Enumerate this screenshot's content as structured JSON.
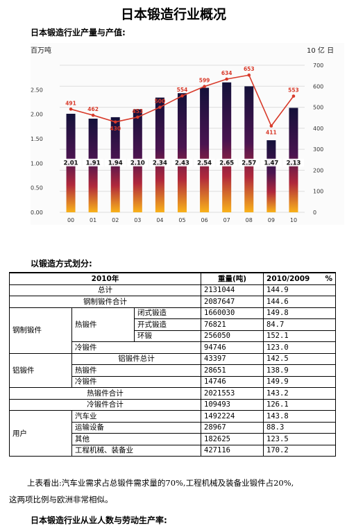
{
  "page": {
    "title": "日本锻造行业概况",
    "section1": "日本锻造行业产量与产值:",
    "section2": "以锻造方式划分:",
    "paragraph_line1": "上表看出:汽车业需求占总锻件需求量的70%,工程机械及装备业锻件占20%,",
    "paragraph_line2": "这两项比例与欧洲非常相似。",
    "section3": "日本锻造行业从业人数与劳动生产率:"
  },
  "chart_data": {
    "type": "bar",
    "left_axis_label": "百万吨",
    "right_axis_label": "10 亿 日",
    "categories": [
      "00",
      "01",
      "02",
      "03",
      "04",
      "05",
      "06",
      "07",
      "08",
      "09",
      "10"
    ],
    "bar_values": [
      2.01,
      1.91,
      1.94,
      2.1,
      2.34,
      2.43,
      2.54,
      2.65,
      2.57,
      1.47,
      2.13
    ],
    "bar_labels": [
      "2.01",
      "1.91",
      "1.94",
      "2.10",
      "2.34",
      "2.43",
      "2.54",
      "2.65",
      "2.57",
      "1.47",
      "2.13"
    ],
    "line_values": [
      491,
      462,
      430,
      453,
      500,
      554,
      599,
      634,
      653,
      411,
      553
    ],
    "line_labels": [
      "491",
      "462",
      "430",
      "453",
      "500",
      "554",
      "599",
      "634",
      "653",
      "411",
      "553"
    ],
    "left_ylim": [
      0,
      3.0
    ],
    "right_ylim": [
      0,
      700
    ],
    "left_ticks": [
      "0.00",
      "0.50",
      "1.00",
      "1.50",
      "2.00",
      "2.50"
    ],
    "right_ticks": [
      "0",
      "100",
      "200",
      "300",
      "400",
      "500",
      "600",
      "700"
    ],
    "grid": true,
    "colors": {
      "bar_top": "#15123a",
      "bar_mid": "#7a1a4a",
      "bar_bottom": "#f7a81b",
      "line": "#d83a2a",
      "value_label": "#d83a2a"
    }
  },
  "table": {
    "header": [
      "2010年",
      "重量(吨)",
      "2010/2009",
      "%"
    ],
    "rows": {
      "total": {
        "label": "总计",
        "weight": "2131044",
        "ratio": "144.9"
      },
      "steel_total": {
        "label": "钢制锻件合计",
        "weight": "2087647",
        "ratio": "144.6"
      },
      "steel_group": "钢制锻件",
      "hot_group": "热锻件",
      "closed": {
        "label": "闭式锻造",
        "weight": "1660030",
        "ratio": "149.8"
      },
      "open": {
        "label": "开式锻造",
        "weight": "76821",
        "ratio": "84.7"
      },
      "ring": {
        "label": "环锻",
        "weight": "256050",
        "ratio": "152.1"
      },
      "steel_cold": {
        "label": "冷锻件",
        "weight": "94746",
        "ratio": "123.0"
      },
      "al_total": {
        "label": "铝锻件总计",
        "weight": "43397",
        "ratio": "142.5"
      },
      "al_group": "铝锻件",
      "al_hot": {
        "label": "热锻件",
        "weight": "28651",
        "ratio": "138.9"
      },
      "al_cold": {
        "label": "冷锻件",
        "weight": "14746",
        "ratio": "149.9"
      },
      "hot_total": {
        "label": "热锻件合计",
        "weight": "2021553",
        "ratio": "143.2"
      },
      "cold_total": {
        "label": "冷锻件合计",
        "weight": "109493",
        "ratio": "126.1"
      },
      "user_group": "用户",
      "auto": {
        "label": "汽车业",
        "weight": "1492224",
        "ratio": "143.8"
      },
      "transport": {
        "label": "运输设备",
        "weight": "28967",
        "ratio": "88.3"
      },
      "other": {
        "label": "其他",
        "weight": "182625",
        "ratio": "123.5"
      },
      "machinery": {
        "label": "工程机械、装备业",
        "weight": "427116",
        "ratio": "170.2"
      }
    }
  }
}
